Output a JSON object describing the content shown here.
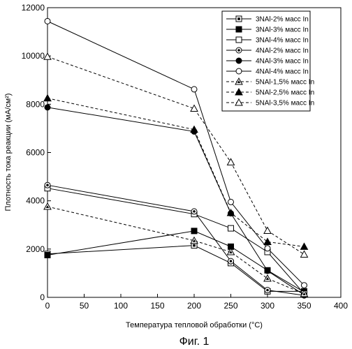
{
  "chart_data": {
    "type": "line",
    "xlabel": "Температура тепловой обработки (°C)",
    "ylabel": "Плотность тока реакции (мА/см²)",
    "caption": "Фиг. 1",
    "xlim": [
      0,
      400
    ],
    "ylim": [
      0,
      12000
    ],
    "xticks": [
      0,
      50,
      100,
      150,
      200,
      250,
      300,
      350,
      400
    ],
    "yticks": [
      0,
      2000,
      4000,
      6000,
      8000,
      10000,
      12000
    ],
    "grid": false,
    "legend_position": "top-right",
    "x": [
      0,
      200,
      250,
      300,
      350
    ],
    "series": [
      {
        "name": "3NAl-2% масс In",
        "marker": "square-dot",
        "dash": "solid",
        "values": [
          1800,
          2150,
          1420,
          250,
          250
        ]
      },
      {
        "name": "3NAl-3% масс In",
        "marker": "square-filled",
        "dash": "solid",
        "values": [
          1750,
          2750,
          2100,
          1120,
          220
        ]
      },
      {
        "name": "3NAl-4% масс In",
        "marker": "square-open",
        "dash": "solid",
        "values": [
          4520,
          3450,
          2860,
          1880,
          150
        ]
      },
      {
        "name": "4NAl-2% масс In",
        "marker": "circle-dot",
        "dash": "solid",
        "values": [
          4650,
          3560,
          1500,
          300,
          80
        ]
      },
      {
        "name": "4NAl-3% масс In",
        "marker": "circle-filled",
        "dash": "solid",
        "values": [
          7870,
          6870,
          3480,
          1100,
          100
        ]
      },
      {
        "name": "4NAl-4% масс In",
        "marker": "circle-open",
        "dash": "solid",
        "values": [
          11440,
          8620,
          3950,
          2030,
          500
        ]
      },
      {
        "name": "5NAl-1,5% масс In",
        "marker": "triangle-dot",
        "dash": "dashed",
        "values": [
          3760,
          2350,
          1880,
          780,
          150
        ]
      },
      {
        "name": "5NAl-2,5% масс In",
        "marker": "triangle-filled",
        "dash": "dashed",
        "values": [
          8250,
          6950,
          3500,
          2300,
          2100
        ]
      },
      {
        "name": "5NAl-3,5% масс In",
        "marker": "triangle-open",
        "dash": "dashed",
        "values": [
          9970,
          7820,
          5600,
          2760,
          1780
        ]
      }
    ]
  }
}
